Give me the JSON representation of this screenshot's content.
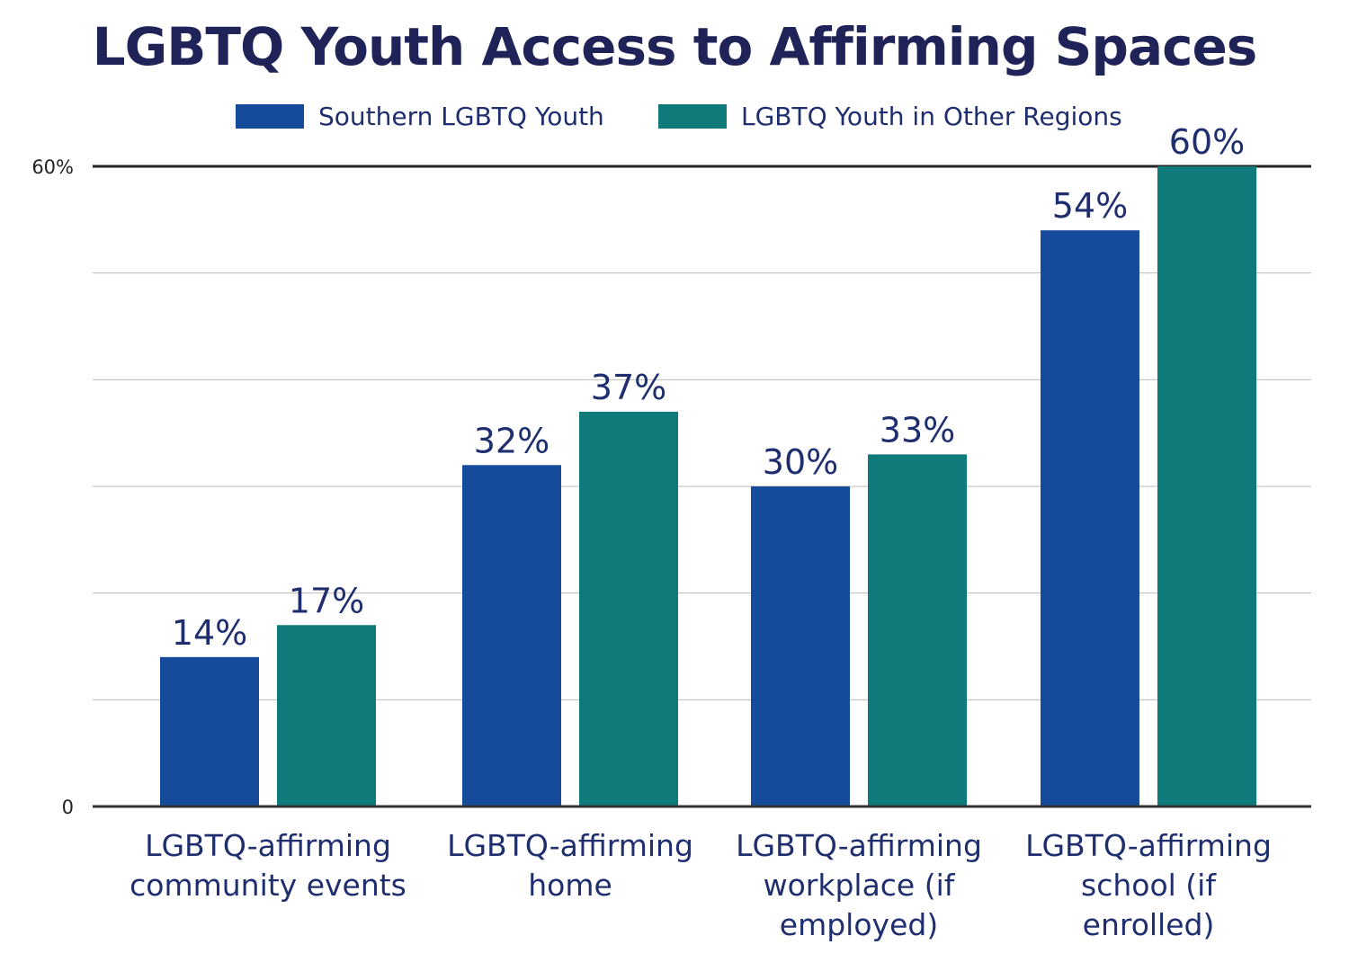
{
  "chart_data": {
    "type": "bar",
    "title": "LGBTQ Youth Access to Affirming Spaces",
    "categories": [
      [
        "LGBTQ-affirming",
        "community events"
      ],
      [
        "LGBTQ-affirming",
        "home"
      ],
      [
        "LGBTQ-affirming",
        "workplace (if",
        "employed)"
      ],
      [
        "LGBTQ-affirming",
        "school (if",
        "enrolled)"
      ]
    ],
    "series": [
      {
        "name": "Southern LGBTQ Youth",
        "values": [
          14,
          32,
          30,
          54
        ],
        "labels": [
          "14%",
          "32%",
          "30%",
          "54%"
        ],
        "color": "#154b9a"
      },
      {
        "name": "LGBTQ Youth in Other Regions",
        "values": [
          17,
          37,
          33,
          60
        ],
        "labels": [
          "17%",
          "37%",
          "33%",
          "60%"
        ],
        "color": "#0f7a7a"
      }
    ],
    "ylim": [
      0,
      60
    ],
    "yticks": [
      {
        "value": 0,
        "label": "0"
      },
      {
        "value": 60,
        "label": "60%"
      }
    ],
    "gridlines": [
      10,
      20,
      30,
      40,
      50
    ],
    "grid": true,
    "legend": "top",
    "xlabel": "",
    "ylabel": ""
  }
}
